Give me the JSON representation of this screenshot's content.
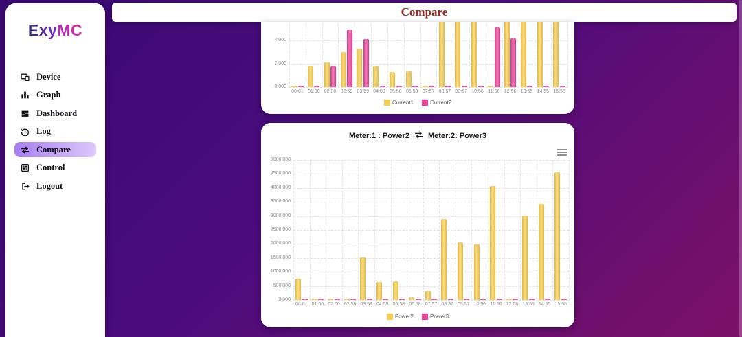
{
  "app": {
    "logo": {
      "part1": "Exy",
      "part2": "MC"
    }
  },
  "header": {
    "title": "Compare"
  },
  "sidebar": {
    "items": [
      {
        "label": "Device",
        "icon": "device-icon",
        "active": false
      },
      {
        "label": "Graph",
        "icon": "graph-icon",
        "active": false
      },
      {
        "label": "Dashboard",
        "icon": "dashboard-icon",
        "active": false
      },
      {
        "label": "Log",
        "icon": "log-icon",
        "active": false
      },
      {
        "label": "Compare",
        "icon": "compare-icon",
        "active": true
      },
      {
        "label": "Control",
        "icon": "control-icon",
        "active": false
      },
      {
        "label": "Logout",
        "icon": "logout-icon",
        "active": false
      }
    ]
  },
  "colors": {
    "background_gradient_start": "#3A0A72",
    "background_gradient_end": "#7C1167",
    "series_yellow": "#F9CD4D",
    "series_pink": "#EC3E96",
    "active_item_gradient_start": "#A87DF0",
    "active_item_gradient_end": "#DCC9FB",
    "header_title_color": "#9D2A26"
  },
  "chart_data": [
    {
      "type": "bar",
      "title": "",
      "clipped_top": true,
      "categories": [
        "00:01",
        "01:00",
        "02:00",
        "02:59",
        "03:59",
        "04:59",
        "05:58",
        "06:58",
        "07:57",
        "08:57",
        "09:57",
        "10:56",
        "11:56",
        "12:56",
        "13:55",
        "14:55",
        "15:55"
      ],
      "series": [
        {
          "name": "Current1",
          "color": "#F9CD4D",
          "values": [
            0.08,
            1.8,
            2.1,
            3.0,
            3.3,
            1.8,
            1.3,
            1.35,
            0.08,
            6,
            6,
            6,
            0.08,
            6,
            6,
            6,
            6
          ]
        },
        {
          "name": "Current2",
          "color": "#EC3E96",
          "values": [
            0.08,
            0.08,
            1.8,
            4.95,
            4.1,
            0.08,
            0.08,
            0.08,
            0.08,
            0.08,
            0.08,
            0.08,
            5.1,
            4.2,
            0.08,
            0.08,
            0.08
          ]
        }
      ],
      "ylim": [
        0,
        6
      ],
      "yticks": [
        {
          "v": 0,
          "label": "0.000"
        },
        {
          "v": 2,
          "label": "2.000"
        },
        {
          "v": 4,
          "label": "4.000"
        }
      ],
      "grid": "dashed",
      "legend_position": "bottom"
    },
    {
      "type": "bar",
      "title_left": "Meter:1 : Power2",
      "title_right": "Meter:2: Power3",
      "title_icon": "swap-arrows-icon",
      "menu_icon": "hamburger-menu-icon",
      "categories": [
        "00:01",
        "01:00",
        "02:00",
        "02:59",
        "03:59",
        "04:59",
        "05:58",
        "06:58",
        "07:57",
        "08:57",
        "09:57",
        "10:56",
        "11:56",
        "12:56",
        "13:55",
        "14:55",
        "15:55"
      ],
      "series": [
        {
          "name": "Power2",
          "color": "#F9CD4D",
          "values": [
            760,
            40,
            40,
            40,
            1520,
            640,
            670,
            110,
            310,
            2900,
            2060,
            1980,
            4080,
            50,
            3010,
            3440,
            4560
          ]
        },
        {
          "name": "Power3",
          "color": "#EC3E96",
          "values": [
            30,
            30,
            30,
            30,
            30,
            30,
            30,
            30,
            30,
            30,
            30,
            30,
            30,
            30,
            30,
            30,
            30
          ]
        }
      ],
      "ylim": [
        0,
        5000
      ],
      "yticks": [
        {
          "v": 0,
          "label": "0.000"
        },
        {
          "v": 500,
          "label": "500.000"
        },
        {
          "v": 1000,
          "label": "1000.000"
        },
        {
          "v": 1500,
          "label": "1500.000"
        },
        {
          "v": 2000,
          "label": "2000.000"
        },
        {
          "v": 2500,
          "label": "2500.000"
        },
        {
          "v": 3000,
          "label": "3000.000"
        },
        {
          "v": 3500,
          "label": "3500.000"
        },
        {
          "v": 4000,
          "label": "4000.000"
        },
        {
          "v": 4500,
          "label": "4500.000"
        },
        {
          "v": 5000,
          "label": "5000.000"
        }
      ],
      "grid": "dashed",
      "legend_position": "bottom"
    }
  ]
}
